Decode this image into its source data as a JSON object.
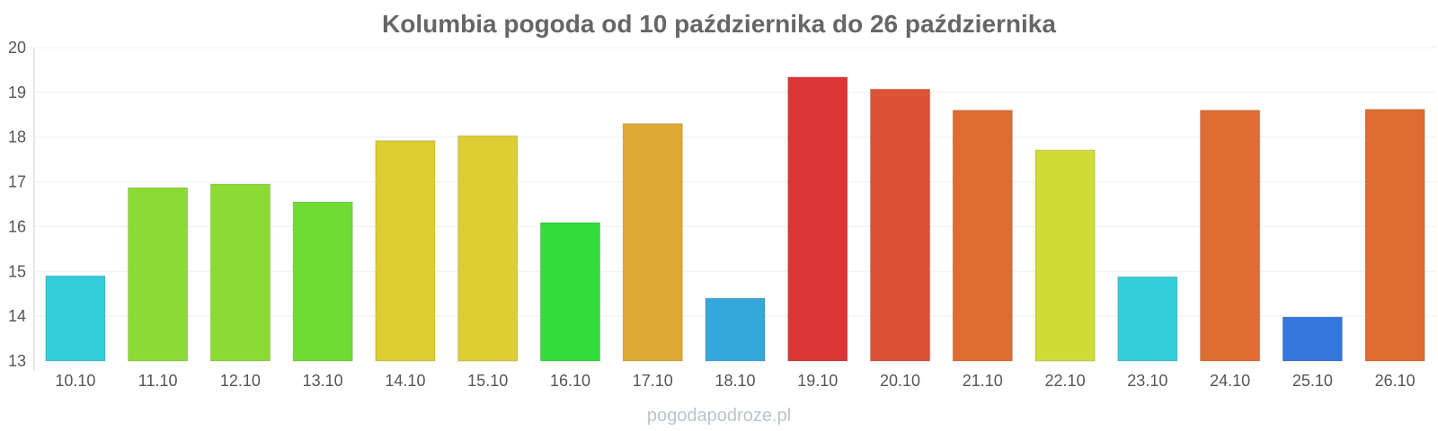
{
  "chart_data": {
    "type": "bar",
    "title": "Kolumbia pogoda od 10 października do 26 października",
    "xlabel": "",
    "ylabel": "",
    "categories": [
      "10.10",
      "11.10",
      "12.10",
      "13.10",
      "14.10",
      "15.10",
      "16.10",
      "17.10",
      "18.10",
      "19.10",
      "20.10",
      "21.10",
      "22.10",
      "23.10",
      "24.10",
      "25.10",
      "26.10"
    ],
    "values": [
      14.9,
      16.87,
      16.95,
      16.55,
      17.92,
      18.03,
      16.09,
      18.3,
      14.4,
      19.34,
      19.07,
      18.6,
      17.71,
      14.88,
      18.6,
      13.98,
      18.62
    ],
    "colors": [
      "#33cdd9",
      "#8cdb35",
      "#8cdb35",
      "#6edc35",
      "#dccd33",
      "#dccd33",
      "#33db3b",
      "#dda833",
      "#36a7db",
      "#dc3535",
      "#dd5235",
      "#dd6d33",
      "#cfdc35",
      "#33cdd9",
      "#dd6d33",
      "#3477db",
      "#dd6d33"
    ],
    "ylim": [
      13,
      20
    ],
    "yticks": [
      13,
      14,
      15,
      16,
      17,
      18,
      19,
      20
    ],
    "grid": true,
    "legend": "none"
  },
  "watermark": "pogodapodroze.pl"
}
